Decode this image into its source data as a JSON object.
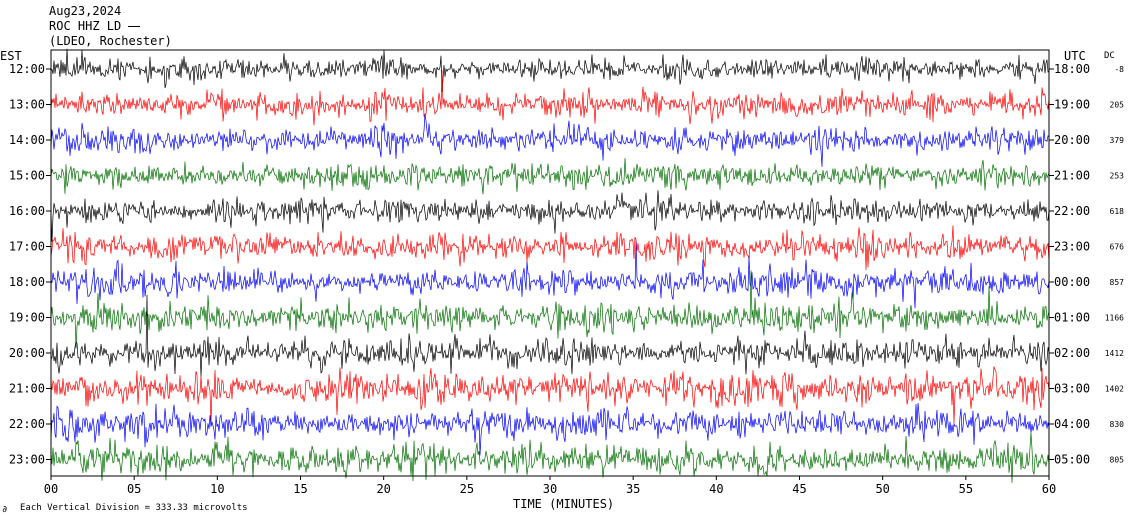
{
  "header": {
    "date": "Aug23,2024",
    "station": "ROC HHZ LD",
    "network": "(LDEO, Rochester)"
  },
  "axes": {
    "left_title": "EST",
    "right_title": "UTC",
    "dc_title": "DC",
    "xlabel": "TIME (MINUTES)",
    "footer": "Each Vertical Division = 333.33 microvolts"
  },
  "colors": {
    "cycle": [
      "#000000",
      "#ff0000",
      "#0000ff",
      "#007000"
    ]
  },
  "chart_data": {
    "type": "line",
    "title": "",
    "xlabel": "TIME (MINUTES)",
    "xlim": [
      0,
      60
    ],
    "x_ticks": [
      "00",
      "05",
      "10",
      "15",
      "20",
      "25",
      "30",
      "35",
      "40",
      "45",
      "50",
      "55",
      "60"
    ],
    "rows_left": [
      "12:00",
      "13:00",
      "14:00",
      "15:00",
      "16:00",
      "17:00",
      "18:00",
      "19:00",
      "20:00",
      "21:00",
      "22:00",
      "23:00"
    ],
    "rows_right": [
      "18:00",
      "19:00",
      "20:00",
      "21:00",
      "22:00",
      "23:00",
      "00:00",
      "01:00",
      "02:00",
      "03:00",
      "04:00",
      "05:00"
    ],
    "dc_offsets": [
      "-8",
      "205",
      "379",
      "253",
      "618",
      "676",
      "857",
      "1166",
      "1412",
      "1402",
      "830",
      "805"
    ],
    "amplitude_relative": [
      1.0,
      1.05,
      1.1,
      1.15,
      1.05,
      1.15,
      1.25,
      1.3,
      1.25,
      1.35,
      1.3,
      1.4
    ],
    "color_cycle": [
      "black",
      "red",
      "blue",
      "green"
    ]
  }
}
